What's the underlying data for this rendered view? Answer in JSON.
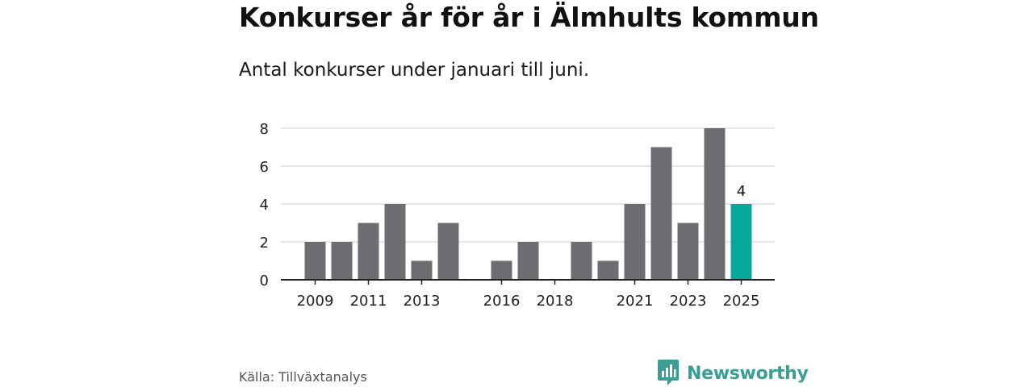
{
  "title": "Konkurser år för år i Älmhults kommun",
  "subtitle": "Antal konkurser under januari till juni.",
  "source": "Källa: Tillväxtanalys",
  "brand": "Newsworthy",
  "colors": {
    "bar": "#6e6d72",
    "highlight": "#0aa89a",
    "grid": "#dddddd",
    "axis": "#222222",
    "brand": "#3a9e95"
  },
  "chart_data": {
    "type": "bar",
    "categories": [
      "2009",
      "2010",
      "2011",
      "2012",
      "2013",
      "2014",
      "2015",
      "2016",
      "2017",
      "2018",
      "2019",
      "2020",
      "2021",
      "2022",
      "2023",
      "2024",
      "2025"
    ],
    "values": [
      2,
      2,
      3,
      4,
      1,
      3,
      0,
      1,
      2,
      0,
      2,
      1,
      4,
      7,
      3,
      8,
      4
    ],
    "x_tick_labels": [
      "2009",
      "2011",
      "2013",
      "2016",
      "2018",
      "2021",
      "2023",
      "2025"
    ],
    "y_ticks": [
      0,
      2,
      4,
      6,
      8
    ],
    "ylim": [
      0,
      8
    ],
    "highlight": "2025",
    "data_labels": [
      {
        "category": "2025",
        "text": "4"
      }
    ],
    "grid": true,
    "xlabel": "",
    "ylabel": ""
  }
}
